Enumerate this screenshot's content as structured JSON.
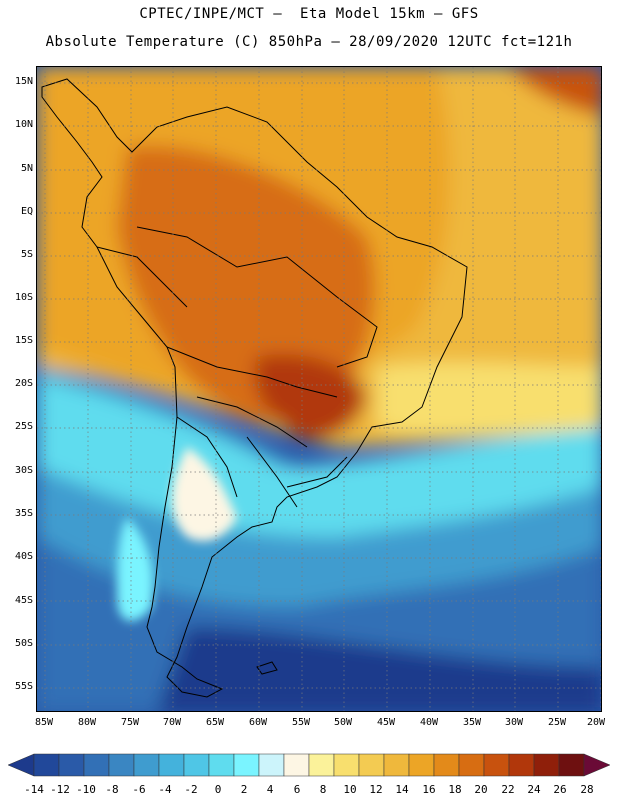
{
  "header": {
    "line1": "CPTEC/INPE/MCT –  Eta Model 15km – GFS",
    "line2": "Absolute Temperature (C) 850hPa – 28/09/2020 12UTC fct=121h"
  },
  "map": {
    "lat_labels": [
      "15N",
      "10N",
      "5N",
      "EQ",
      "5S",
      "10S",
      "15S",
      "20S",
      "25S",
      "30S",
      "35S",
      "40S",
      "45S",
      "50S",
      "55S"
    ],
    "lon_labels": [
      "85W",
      "80W",
      "75W",
      "70W",
      "65W",
      "60W",
      "55W",
      "50W",
      "45W",
      "40W",
      "35W",
      "30W",
      "25W",
      "20W"
    ]
  },
  "colorbar": {
    "labels": [
      "-14",
      "-12",
      "-10",
      "-8",
      "-6",
      "-4",
      "-2",
      "0",
      "2",
      "4",
      "6",
      "8",
      "10",
      "12",
      "14",
      "16",
      "18",
      "20",
      "22",
      "24",
      "26",
      "28"
    ],
    "colors": [
      "#1d3a8c",
      "#21489a",
      "#2a5aa8",
      "#3270b6",
      "#3a86c2",
      "#3f9ccf",
      "#44b2dc",
      "#4fc6e6",
      "#5fdcee",
      "#7af4ff",
      "#ccf4fb",
      "#fdf6e4",
      "#fbf29a",
      "#f8df6e",
      "#f3cb52",
      "#efb83c",
      "#eca526",
      "#e38a1a",
      "#d76d12",
      "#c8520e",
      "#b1370b",
      "#8f1f0a",
      "#6e1010",
      "#6a0a36"
    ]
  }
}
